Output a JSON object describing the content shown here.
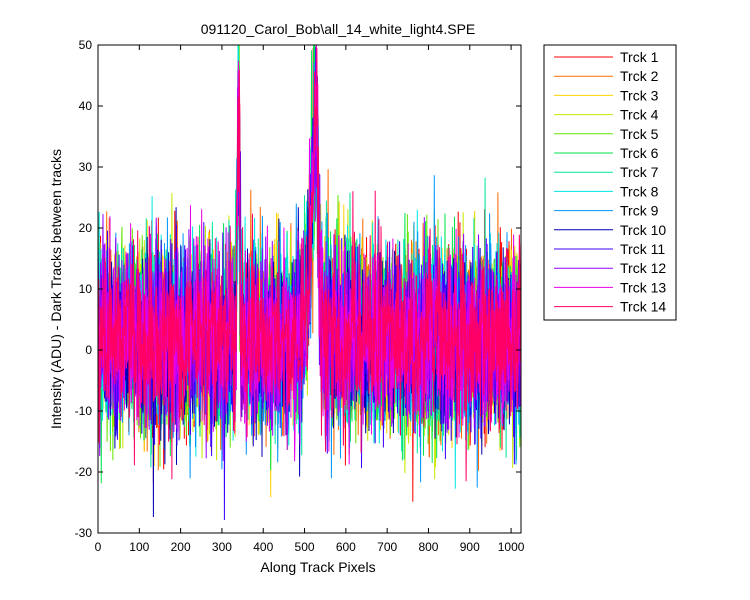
{
  "chart_data": {
    "type": "line",
    "title": "091120_Carol_Bob\\all_14_white_light4.SPE",
    "xlabel": "Along Track Pixels",
    "ylabel": "Intensity (ADU) - Dark Tracks between tracks",
    "xlim": [
      0,
      1024
    ],
    "ylim": [
      -30,
      50
    ],
    "xticks": [
      0,
      100,
      200,
      300,
      400,
      500,
      600,
      700,
      800,
      900,
      1000
    ],
    "yticks": [
      -30,
      -20,
      -10,
      0,
      10,
      20,
      30,
      40,
      50
    ],
    "grid": false,
    "legend_position": "outside-right",
    "noise": {
      "mean": 2,
      "sd": 7.5,
      "min": -29.8,
      "max": 31,
      "peaks": [
        {
          "x": 340,
          "peak": 49,
          "width": 4
        },
        {
          "x": 528,
          "peak": 45,
          "width": 8
        },
        {
          "x": 515,
          "peak": 24,
          "width": 10
        }
      ]
    },
    "series": [
      {
        "name": "Trck 1",
        "color": "#ff0000"
      },
      {
        "name": "Trck 2",
        "color": "#ff6a00"
      },
      {
        "name": "Trck 3",
        "color": "#ffd200"
      },
      {
        "name": "Trck 4",
        "color": "#c8e600"
      },
      {
        "name": "Trck 5",
        "color": "#64e600"
      },
      {
        "name": "Trck 6",
        "color": "#00e650"
      },
      {
        "name": "Trck 7",
        "color": "#00e6a0"
      },
      {
        "name": "Trck 8",
        "color": "#00e6e6"
      },
      {
        "name": "Trck 9",
        "color": "#0096ff"
      },
      {
        "name": "Trck 10",
        "color": "#0000b4"
      },
      {
        "name": "Trck 11",
        "color": "#3c00ff"
      },
      {
        "name": "Trck 12",
        "color": "#9600ff"
      },
      {
        "name": "Trck 13",
        "color": "#e600e6"
      },
      {
        "name": "Trck 14",
        "color": "#ff0064"
      }
    ]
  }
}
